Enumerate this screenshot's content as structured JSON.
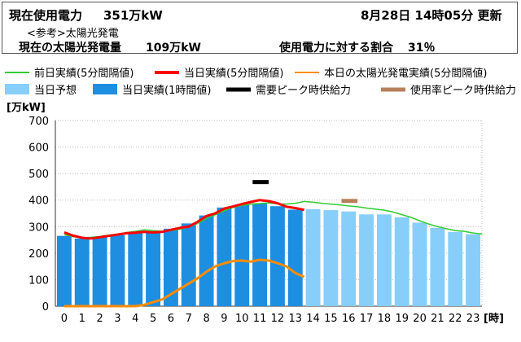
{
  "header": {
    "current_label": "現在使用電力",
    "current_value": "351万kW",
    "datetime": "8月28日 14時05分 更新",
    "reference": "<参考>太陽光発電",
    "solar_label": "現在の太陽光発電量",
    "solar_value": "109万kW",
    "ratio_label": "使用電力に対する割合",
    "ratio_value": "31％"
  },
  "colors": {
    "prev_day": "#33cc33",
    "today_5min": "#ff0000",
    "solar": "#ff8c00",
    "forecast_bar": "#87cefa",
    "actual_bar": "#1e8ee0",
    "demand_peak": "#000000",
    "usage_peak": "#b8805a"
  },
  "chart_data": {
    "type": "bar",
    "unit_label": "[万kW]",
    "x_unit_label": "[時]",
    "ylim": [
      0,
      700
    ],
    "y_ticks": [
      0,
      100,
      200,
      300,
      400,
      500,
      600,
      700
    ],
    "categories": [
      "0",
      "1",
      "2",
      "3",
      "4",
      "5",
      "6",
      "7",
      "8",
      "9",
      "10",
      "11",
      "12",
      "13",
      "14",
      "15",
      "16",
      "17",
      "18",
      "19",
      "20",
      "21",
      "22",
      "23"
    ],
    "legend": [
      {
        "name": "前日実績(5分間隔値)",
        "style": "line",
        "color": "#33cc33"
      },
      {
        "name": "当日実績(5分間隔値)",
        "style": "line-thick",
        "color": "#ff0000"
      },
      {
        "name": "本日の太陽光発電実績(5分間隔値)",
        "style": "line",
        "color": "#ff8c00"
      },
      {
        "name": "当日予想",
        "style": "box",
        "color": "#87cefa"
      },
      {
        "name": "当日実績(1時間値)",
        "style": "box",
        "color": "#1e8ee0"
      },
      {
        "name": "需要ピーク時供給力",
        "style": "dash",
        "color": "#000000"
      },
      {
        "name": "使用率ピーク時供給力",
        "style": "dash",
        "color": "#b8805a"
      }
    ],
    "series": [
      {
        "name": "当日実績(1時間値)",
        "values": [
          265,
          255,
          262,
          268,
          275,
          280,
          292,
          312,
          342,
          372,
          383,
          388,
          377,
          364,
          null,
          null,
          null,
          null,
          null,
          null,
          null,
          null,
          null,
          null
        ]
      },
      {
        "name": "当日予想",
        "values": [
          null,
          null,
          null,
          null,
          null,
          null,
          null,
          null,
          null,
          null,
          null,
          null,
          null,
          null,
          366,
          362,
          357,
          346,
          346,
          335,
          315,
          295,
          280,
          271
        ]
      },
      {
        "name": "前日実績(5分間隔値)",
        "x": [
          0,
          0.5,
          1,
          1.5,
          2,
          2.5,
          3,
          3.5,
          4,
          4.5,
          5,
          5.5,
          6,
          6.5,
          7,
          7.5,
          8,
          8.5,
          9,
          9.5,
          10,
          10.5,
          11,
          11.5,
          12,
          12.5,
          13,
          13.5,
          14,
          14.5,
          15,
          15.5,
          16,
          16.5,
          17,
          17.5,
          18,
          18.5,
          19,
          19.5,
          20,
          20.5,
          21,
          21.5,
          22,
          22.5,
          23,
          23.5
        ],
        "values": [
          270,
          262,
          258,
          260,
          263,
          268,
          272,
          278,
          282,
          288,
          285,
          282,
          285,
          290,
          298,
          312,
          330,
          345,
          360,
          372,
          380,
          385,
          387,
          389,
          386,
          385,
          388,
          395,
          392,
          388,
          385,
          382,
          378,
          375,
          370,
          366,
          362,
          355,
          345,
          335,
          322,
          310,
          300,
          292,
          285,
          282,
          276,
          272
        ]
      },
      {
        "name": "当日実績(5分間隔値)",
        "x": [
          0,
          0.5,
          1,
          1.5,
          2,
          2.5,
          3,
          3.5,
          4,
          4.5,
          5,
          5.5,
          6,
          6.5,
          7,
          7.5,
          8,
          8.5,
          9,
          9.5,
          10,
          10.5,
          11,
          11.5,
          12,
          12.5,
          13,
          13.5
        ],
        "values": [
          278,
          266,
          258,
          255,
          260,
          265,
          270,
          275,
          277,
          280,
          278,
          280,
          288,
          295,
          300,
          318,
          340,
          350,
          368,
          376,
          385,
          393,
          400,
          396,
          388,
          375,
          370,
          363
        ]
      },
      {
        "name": "本日の太陽光発電実績(5分間隔値)",
        "x": [
          0,
          0.5,
          1,
          1.5,
          2,
          2.5,
          3,
          3.5,
          4,
          4.5,
          5,
          5.5,
          6,
          6.5,
          7,
          7.5,
          8,
          8.5,
          9,
          9.5,
          10,
          10.5,
          11,
          11.5,
          12,
          12.5,
          13,
          13.5
        ],
        "values": [
          0,
          0,
          0,
          0,
          0,
          0,
          0,
          0,
          0,
          5,
          15,
          25,
          45,
          65,
          85,
          105,
          130,
          150,
          162,
          170,
          172,
          168,
          175,
          172,
          162,
          150,
          125,
          110
        ]
      },
      {
        "name": "需要ピーク時供給力",
        "x": [
          10.6,
          11.5
        ],
        "values": [
          468,
          468
        ]
      },
      {
        "name": "使用率ピーク時供給力",
        "x": [
          15.6,
          16.5
        ],
        "values": [
          397,
          397
        ]
      }
    ]
  }
}
